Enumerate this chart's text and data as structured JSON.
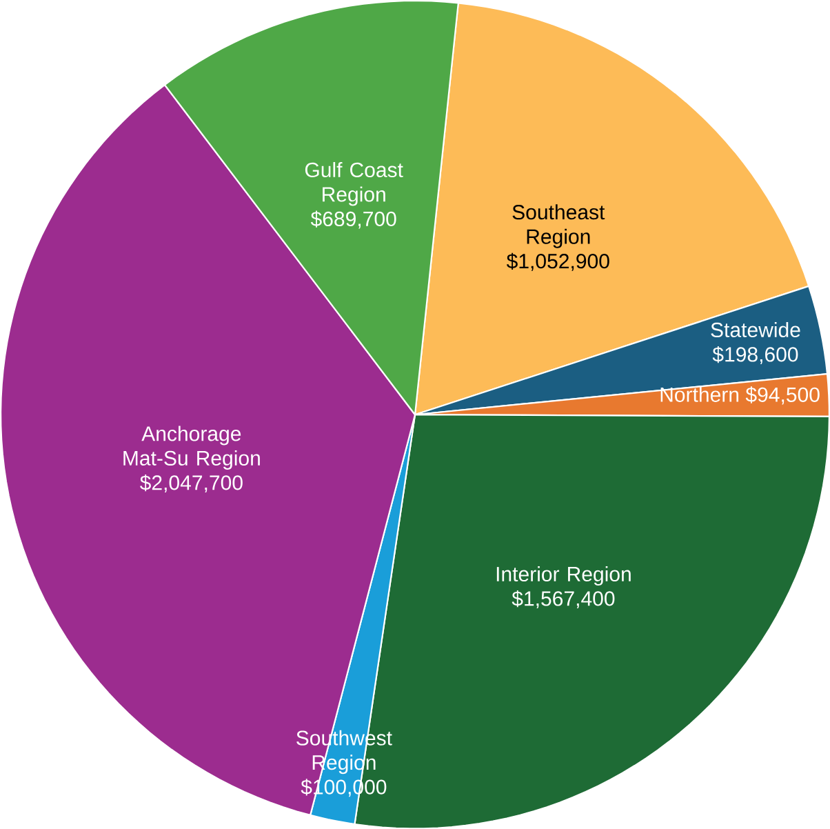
{
  "chart_data": {
    "type": "pie",
    "categories": [
      "Southeast Region",
      "Statewide",
      "Northern",
      "Interior Region",
      "Southwest Region",
      "Anchorage Mat-Su Region",
      "Gulf Coast Region"
    ],
    "values": [
      1052900,
      198600,
      94500,
      1567400,
      100000,
      2047700,
      689700
    ],
    "value_labels": [
      "$1,052,900",
      "$198,600",
      "$94,500",
      "$1,567,400",
      "$100,000",
      "$2,047,700",
      "$689,700"
    ],
    "colors": [
      "#fdbb57",
      "#1b5e82",
      "#e8792f",
      "#1e6b35",
      "#1a9ed9",
      "#9c2c8f",
      "#4fa847"
    ]
  }
}
